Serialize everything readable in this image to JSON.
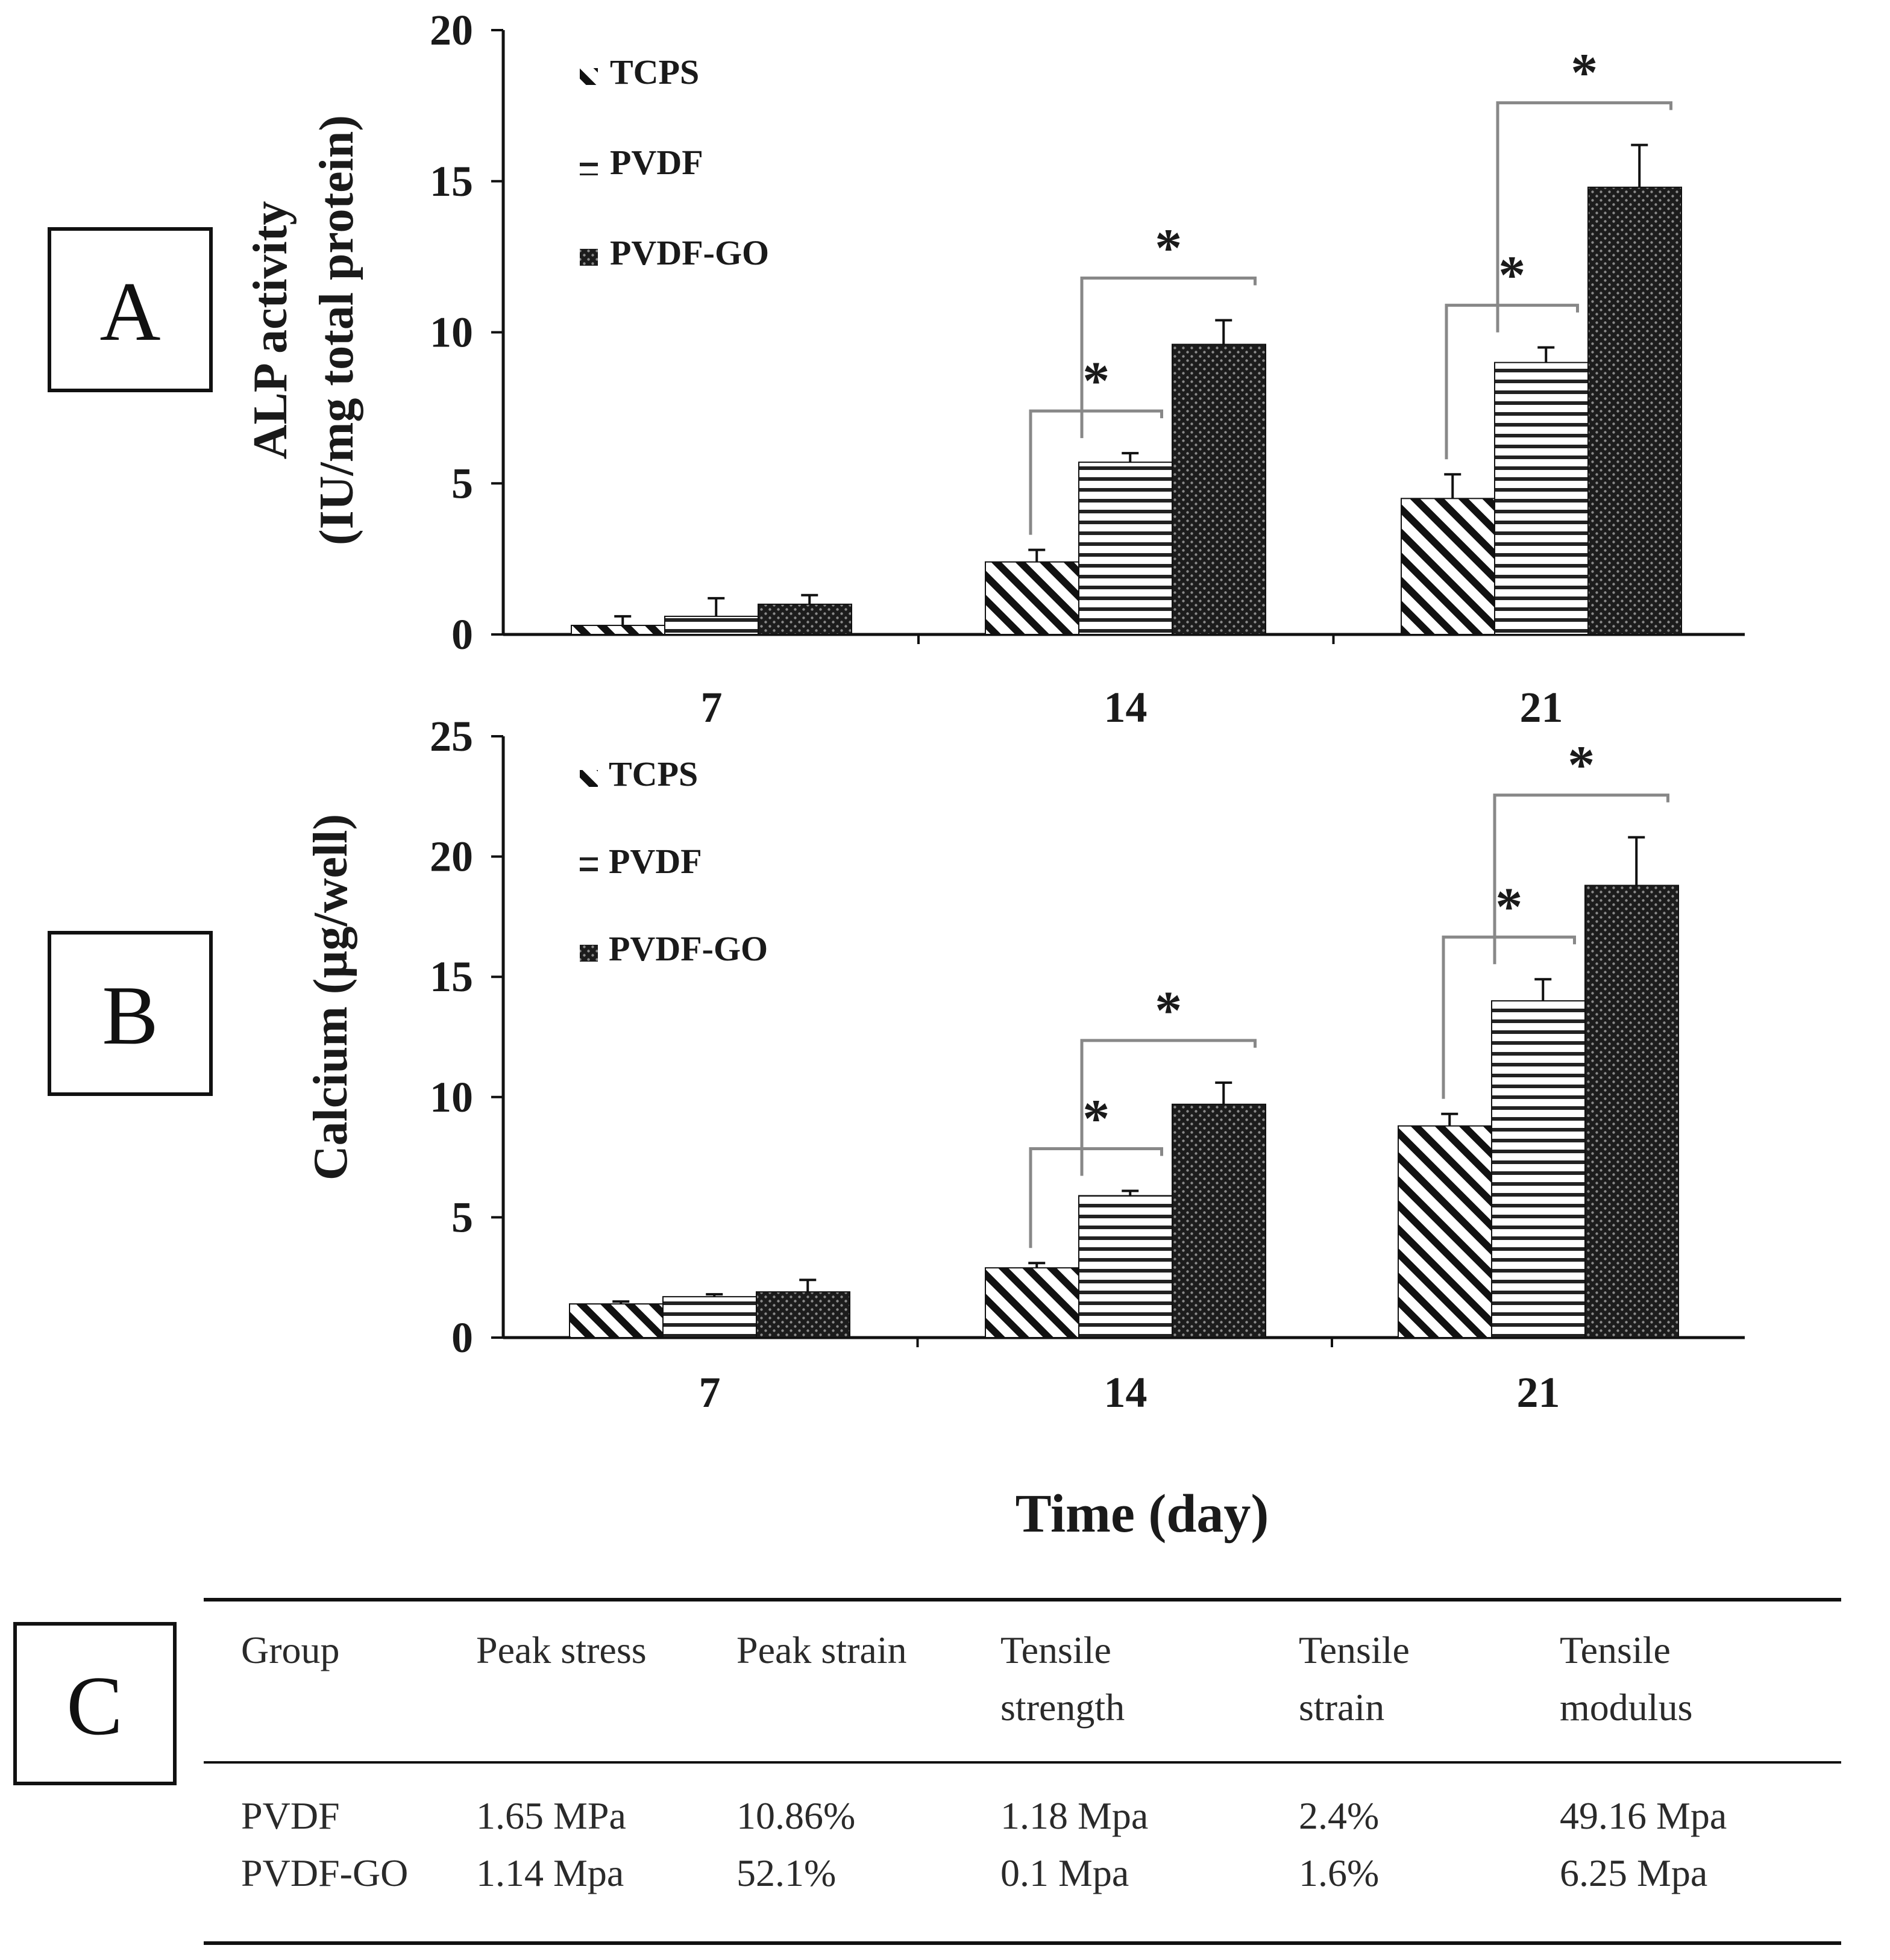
{
  "chart_data": [
    {
      "panel_label": "A",
      "type": "bar",
      "categories": [
        "7",
        "14",
        "21"
      ],
      "ylim": [
        0,
        20
      ],
      "yticks": [
        "0",
        "5",
        "10",
        "15",
        "20"
      ],
      "ylabel_lines": [
        "ALP activity",
        "(IU/mg total protein)"
      ],
      "series": [
        {
          "name": "TCPS",
          "values": [
            0.3,
            2.4,
            4.5
          ],
          "errors": [
            0.3,
            0.4,
            0.8
          ],
          "pattern": "diagonal"
        },
        {
          "name": "PVDF",
          "values": [
            0.6,
            5.7,
            9.0
          ],
          "errors": [
            0.6,
            0.3,
            0.5
          ],
          "pattern": "horizontal"
        },
        {
          "name": "PVDF-GO",
          "values": [
            1.0,
            9.6,
            14.8
          ],
          "errors": [
            0.3,
            0.8,
            1.4
          ],
          "pattern": "dots"
        }
      ],
      "annotations": [
        {
          "text": "*",
          "category": "14",
          "from": "TCPS",
          "to": "PVDF"
        },
        {
          "text": "*",
          "category": "14",
          "from": "PVDF",
          "to": "PVDF-GO"
        },
        {
          "text": "*",
          "category": "21",
          "from": "TCPS",
          "to": "PVDF"
        },
        {
          "text": "*",
          "category": "21",
          "from": "PVDF",
          "to": "PVDF-GO"
        }
      ]
    },
    {
      "panel_label": "B",
      "type": "bar",
      "categories": [
        "7",
        "14",
        "21"
      ],
      "ylim": [
        0,
        25
      ],
      "yticks": [
        "0",
        "5",
        "10",
        "15",
        "20",
        "25"
      ],
      "ylabel_lines": [
        "Calcium (µg/well)"
      ],
      "xlabel": "Time (day)",
      "series": [
        {
          "name": "TCPS",
          "values": [
            1.4,
            2.9,
            8.8
          ],
          "errors": [
            0.1,
            0.2,
            0.5
          ],
          "pattern": "diagonal"
        },
        {
          "name": "PVDF",
          "values": [
            1.7,
            5.9,
            14.0
          ],
          "errors": [
            0.1,
            0.2,
            0.9
          ],
          "pattern": "horizontal"
        },
        {
          "name": "PVDF-GO",
          "values": [
            1.9,
            9.7,
            18.8
          ],
          "errors": [
            0.5,
            0.9,
            2.0
          ],
          "pattern": "dots"
        }
      ],
      "annotations": [
        {
          "text": "*",
          "category": "14",
          "from": "TCPS",
          "to": "PVDF"
        },
        {
          "text": "*",
          "category": "14",
          "from": "PVDF",
          "to": "PVDF-GO"
        },
        {
          "text": "*",
          "category": "21",
          "from": "TCPS",
          "to": "PVDF"
        },
        {
          "text": "*",
          "category": "21",
          "from": "PVDF",
          "to": "PVDF-GO"
        }
      ]
    },
    {
      "panel_label": "C",
      "type": "table",
      "header_lines": [
        [
          "Group",
          ""
        ],
        [
          "Peak stress",
          ""
        ],
        [
          "Peak strain",
          ""
        ],
        [
          "Tensile",
          "strength"
        ],
        [
          "Tensile",
          "strain"
        ],
        [
          "Tensile",
          "modulus"
        ]
      ],
      "rows": [
        [
          "PVDF",
          "1.65 MPa",
          "10.86%",
          "1.18 Mpa",
          "2.4%",
          "49.16 Mpa"
        ],
        [
          "PVDF-GO",
          "1.14 Mpa",
          "52.1%",
          "0.1 Mpa",
          "1.6%",
          "6.25 Mpa"
        ]
      ]
    }
  ]
}
